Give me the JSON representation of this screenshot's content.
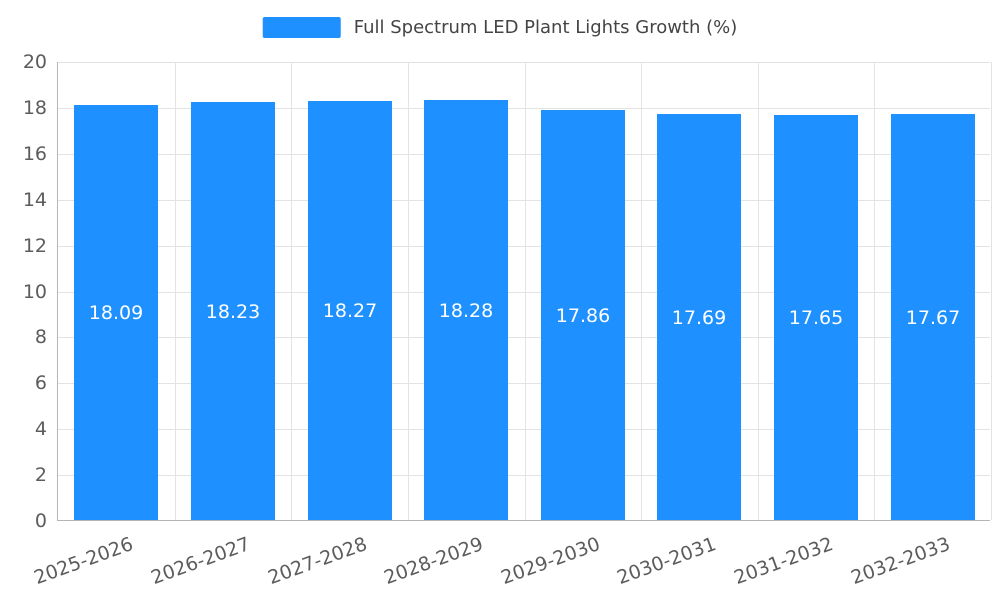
{
  "chart_data": {
    "type": "bar",
    "title": "Full Spectrum LED Plant Lights Growth (%)",
    "categories": [
      "2025-2026",
      "2026-2027",
      "2027-2028",
      "2028-2029",
      "2029-2030",
      "2030-2031",
      "2031-2032",
      "2032-2033"
    ],
    "values": [
      18.09,
      18.23,
      18.27,
      18.28,
      17.86,
      17.69,
      17.65,
      17.67
    ],
    "value_labels": [
      "18.09",
      "18.23",
      "18.27",
      "18.28",
      "17.86",
      "17.69",
      "17.65",
      "17.67"
    ],
    "ylim": [
      0,
      20
    ],
    "ytick_step": 2,
    "grid": true,
    "legend_position": "top-center",
    "bar_color": "#1E90FF",
    "bar_label_color": "#ffffff",
    "xlabel": "",
    "ylabel": ""
  },
  "legend": {
    "label": "Full Spectrum LED Plant Lights Growth (%)"
  }
}
